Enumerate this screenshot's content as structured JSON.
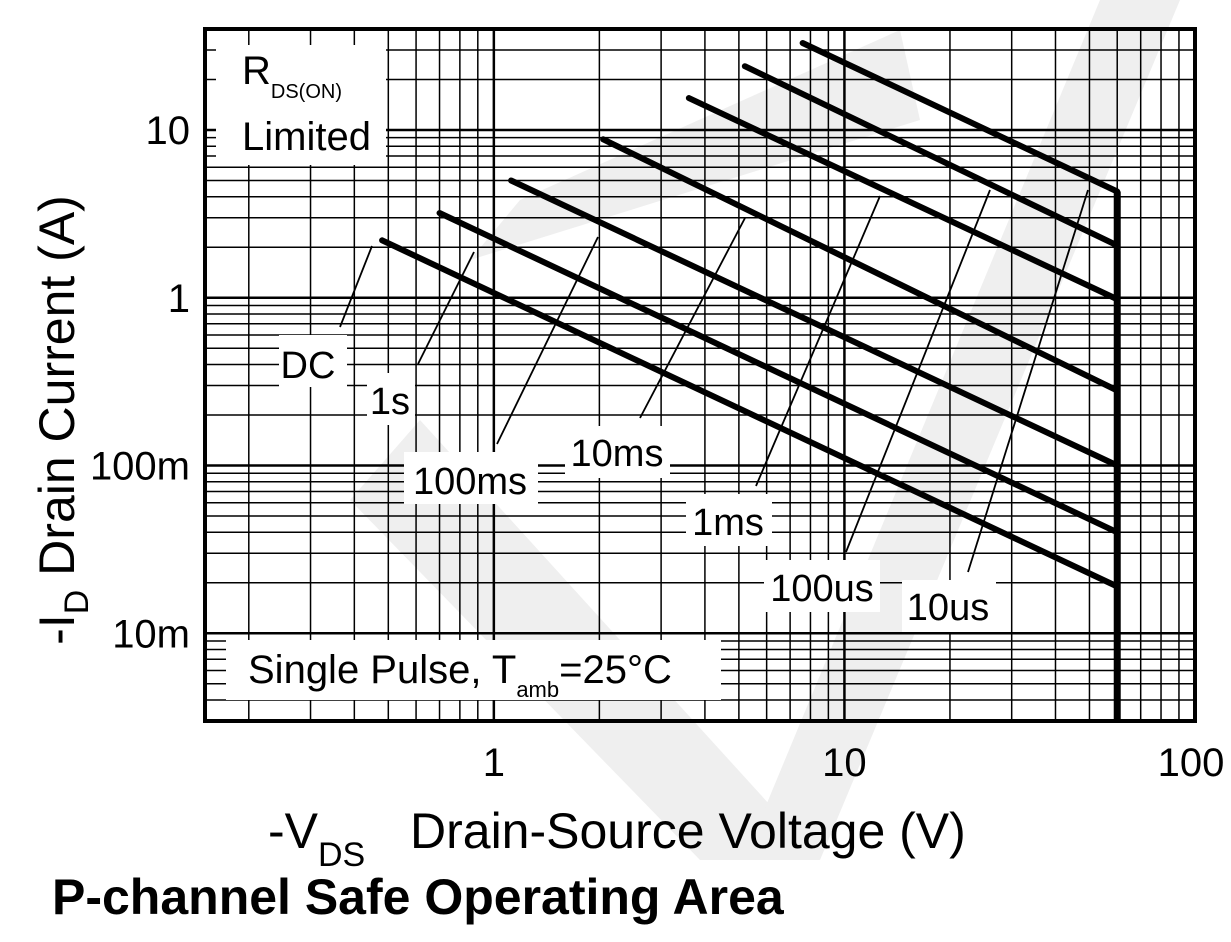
{
  "chart_data": {
    "type": "line",
    "title": "P-channel Safe Operating Area",
    "x_scale": "log",
    "y_scale": "log",
    "xlim": [
      0.15,
      100
    ],
    "ylim": [
      0.003,
      40
    ],
    "grid": true,
    "xlabel": {
      "prefix": "-V",
      "subscript": "DS",
      "text": "Drain-Source Voltage (V)"
    },
    "ylabel": {
      "prefix": "-I",
      "subscript": "D",
      "text": "Drain Current (A)"
    },
    "x_ticks": [
      {
        "value": 1,
        "label": "1"
      },
      {
        "value": 10,
        "label": "10"
      },
      {
        "value": 100,
        "label": "100"
      }
    ],
    "y_ticks": [
      {
        "value": 10,
        "label": "10"
      },
      {
        "value": 1,
        "label": "1"
      },
      {
        "value": 0.1,
        "label": "100m"
      },
      {
        "value": 0.01,
        "label": "10m"
      }
    ],
    "annotations": {
      "rds_on": {
        "main": "R",
        "sub": "DS(ON)",
        "line2": "Limited"
      },
      "conditions": {
        "pre": "Single Pulse, T",
        "sub": "amb",
        "post": "=25°C"
      }
    },
    "vertical_limit": {
      "x": 60,
      "y_top": 4.3
    },
    "series": [
      {
        "name": "DC",
        "points": [
          [
            0.48,
            2.2
          ],
          [
            60,
            0.019
          ]
        ]
      },
      {
        "name": "1s",
        "points": [
          [
            0.7,
            3.2
          ],
          [
            60,
            0.04
          ]
        ]
      },
      {
        "name": "100ms",
        "points": [
          [
            1.12,
            5.0
          ],
          [
            60,
            0.1
          ]
        ]
      },
      {
        "name": "10ms",
        "points": [
          [
            2.05,
            8.8
          ],
          [
            60,
            0.28
          ]
        ]
      },
      {
        "name": "1ms",
        "points": [
          [
            3.6,
            15.5
          ],
          [
            60,
            0.98
          ]
        ]
      },
      {
        "name": "100us",
        "points": [
          [
            5.2,
            24.0
          ],
          [
            60,
            2.05
          ]
        ]
      },
      {
        "name": "10us",
        "points": [
          [
            7.6,
            33.0
          ],
          [
            60,
            4.3
          ]
        ]
      }
    ]
  }
}
